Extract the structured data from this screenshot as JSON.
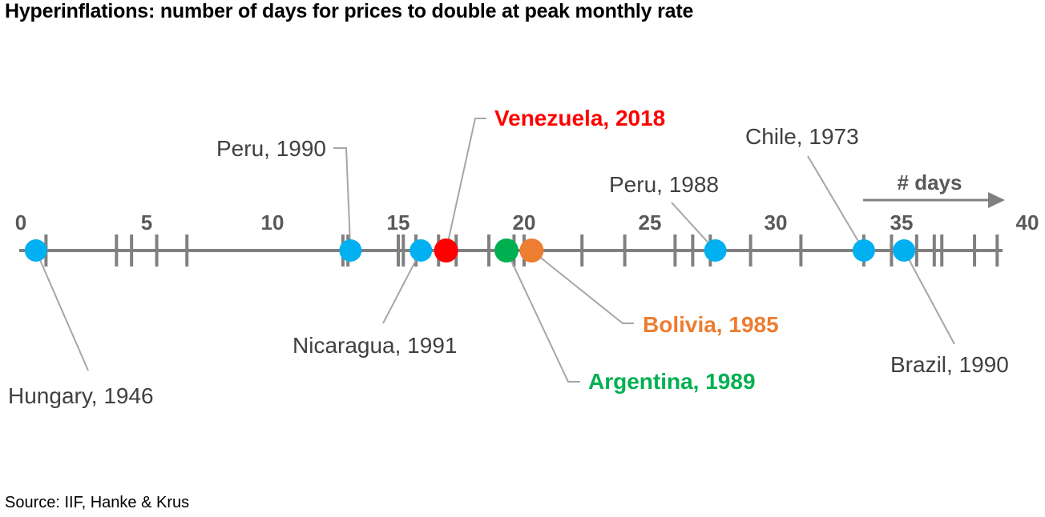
{
  "title": "Hyperinflations: number of days for prices to double at peak monthly rate",
  "source": "Source: IIF, Hanke & Krus",
  "colors": {
    "axis": "#808080",
    "tick_label": "#595959",
    "default_label": "#404040",
    "leader": "#a6a6a6",
    "blue": "#00b0f0",
    "red": "#ff0000",
    "green": "#00b050",
    "orange": "#ed7d31"
  },
  "chart_data": {
    "type": "scatter",
    "title": "Hyperinflations: number of days for prices to double at peak monthly rate",
    "xlabel": "# days",
    "ylabel": "",
    "xlim": [
      0,
      40
    ],
    "x_ticks": [
      0,
      5,
      10,
      15,
      20,
      25,
      30,
      35,
      40
    ],
    "tick_labels": [
      "0",
      "5",
      "10",
      "15",
      "20",
      "25",
      "30",
      "35",
      "40"
    ],
    "event_marks": [
      1.0,
      3.8,
      4.4,
      5.4,
      6.6,
      12.8,
      13.0,
      15.0,
      15.2,
      15.7,
      16.6,
      17.3,
      18.6,
      19.6,
      20.0,
      22.3,
      24.0,
      26.0,
      26.7,
      27.4,
      29.0,
      31.0,
      33.5,
      34.6,
      35.6,
      36.3,
      36.6,
      37.9,
      38.8
    ],
    "points": [
      {
        "label": "Hungary, 1946",
        "x": 0.6,
        "color": "#00b0f0",
        "highlight": false
      },
      {
        "label": "Peru, 1990",
        "x": 13.1,
        "color": "#00b0f0",
        "highlight": false
      },
      {
        "label": "Nicaragua, 1991",
        "x": 15.9,
        "color": "#00b0f0",
        "highlight": false
      },
      {
        "label": "Venezuela, 2018",
        "x": 16.9,
        "color": "#ff0000",
        "highlight": true
      },
      {
        "label": "Argentina, 1989",
        "x": 19.3,
        "color": "#00b050",
        "highlight": true
      },
      {
        "label": "Bolivia, 1985",
        "x": 20.3,
        "color": "#ed7d31",
        "highlight": true
      },
      {
        "label": "Peru, 1988",
        "x": 27.6,
        "color": "#00b0f0",
        "highlight": false
      },
      {
        "label": "Chile, 1973",
        "x": 33.5,
        "color": "#00b0f0",
        "highlight": false
      },
      {
        "label": "Brazil, 1990",
        "x": 35.1,
        "color": "#00b0f0",
        "highlight": false
      }
    ]
  }
}
